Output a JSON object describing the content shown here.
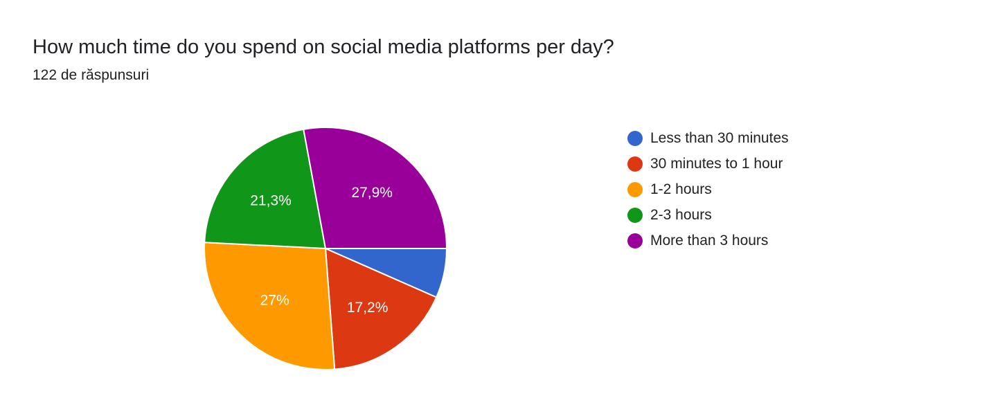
{
  "header": {
    "title": "How much time do you spend on social media platforms per day?",
    "response_count": "122 de răspunsuri"
  },
  "chart_data": {
    "type": "pie",
    "title": "How much time do you spend on social media platforms per day?",
    "categories": [
      "Less than 30 minutes",
      "30 minutes to 1 hour",
      "1-2 hours",
      "2-3 hours",
      "More than 3 hours"
    ],
    "values": [
      6.6,
      17.2,
      27,
      21.3,
      27.9
    ],
    "labels": [
      "",
      "17,2%",
      "27%",
      "21,3%",
      "27,9%"
    ],
    "colors": [
      "#3366cc",
      "#dc3912",
      "#ff9900",
      "#109618",
      "#990099"
    ],
    "start_direction": "east",
    "order": "clockwise",
    "legend_position": "right"
  }
}
